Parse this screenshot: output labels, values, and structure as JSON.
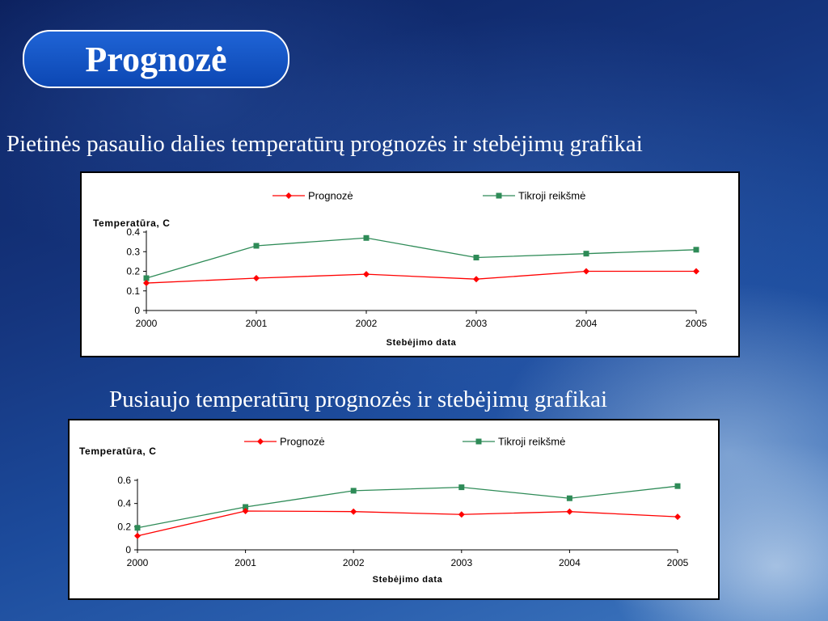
{
  "slide": {
    "title": "Prognozė",
    "subtitle_1": "Pietinės pasaulio dalies temperatūrų prognozės ir stebėjimų grafikai",
    "subtitle_2": "Pusiaujo temperatūrų prognozės ir stebėjimų grafikai"
  },
  "chart_data": [
    {
      "type": "line",
      "x": [
        "2000",
        "2001",
        "2002",
        "2003",
        "2004",
        "2005"
      ],
      "xlabel": "Stebėjimo data",
      "ylabel": "Temperatūra, C",
      "ylim": [
        0,
        0.4
      ],
      "yticks": [
        "0",
        "0.1",
        "0.2",
        "0.3",
        "0.4"
      ],
      "legend_position": "top",
      "grid": false,
      "series": [
        {
          "name": "Prognozė",
          "values": [
            0.14,
            0.165,
            0.185,
            0.16,
            0.2,
            0.2
          ],
          "color": "#ff0000",
          "marker": "diamond"
        },
        {
          "name": "Tikroji reikšmė",
          "values": [
            0.165,
            0.33,
            0.37,
            0.27,
            0.29,
            0.31
          ],
          "color": "#2e8b57",
          "marker": "square"
        }
      ]
    },
    {
      "type": "line",
      "x": [
        "2000",
        "2001",
        "2002",
        "2003",
        "2004",
        "2005"
      ],
      "xlabel": "Stebėjimo data",
      "ylabel": "Temperatūra, C",
      "ylim": [
        0,
        0.6
      ],
      "yticks": [
        "0",
        "0.2",
        "0.4",
        "0.6"
      ],
      "legend_position": "top",
      "grid": false,
      "series": [
        {
          "name": "Prognozė",
          "values": [
            0.12,
            0.335,
            0.33,
            0.305,
            0.33,
            0.285
          ],
          "color": "#ff0000",
          "marker": "diamond"
        },
        {
          "name": "Tikroji reikšmė",
          "values": [
            0.19,
            0.37,
            0.51,
            0.54,
            0.445,
            0.55
          ],
          "color": "#2e8b57",
          "marker": "square"
        }
      ]
    }
  ]
}
